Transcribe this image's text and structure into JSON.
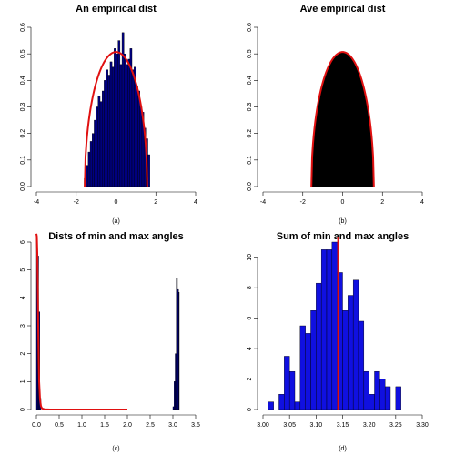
{
  "colors": {
    "bar_fill": "#1010e0",
    "bar_fill_dark": "#000080",
    "bar_stroke": "#000000",
    "curve": "#e01010",
    "black": "#000000"
  },
  "chart_data": [
    {
      "type": "bar",
      "title": "An empirical dist",
      "caption": "(a)",
      "xlabel": "",
      "ylabel": "",
      "xlim": [
        -4,
        4
      ],
      "ylim": [
        0,
        0.6
      ],
      "xticks": [
        -4,
        -2,
        0,
        2,
        4
      ],
      "yticks": [
        0.0,
        0.1,
        0.2,
        0.3,
        0.4,
        0.5,
        0.6
      ],
      "bar_color": "#000080",
      "bin_width": 0.1,
      "bins_start": -1.6,
      "values": [
        0.03,
        0.08,
        0.13,
        0.17,
        0.2,
        0.25,
        0.3,
        0.34,
        0.32,
        0.36,
        0.4,
        0.44,
        0.42,
        0.47,
        0.45,
        0.52,
        0.5,
        0.55,
        0.46,
        0.58,
        0.5,
        0.46,
        0.48,
        0.52,
        0.44,
        0.45,
        0.38,
        0.36,
        0.3,
        0.28,
        0.22,
        0.18,
        0.12
      ],
      "curve": {
        "type": "semicircle",
        "radius": 1.57,
        "peak": 0.507
      }
    },
    {
      "type": "area",
      "title": "Ave empirical dist",
      "caption": "(b)",
      "xlabel": "",
      "ylabel": "",
      "xlim": [
        -4,
        4
      ],
      "ylim": [
        0,
        0.6
      ],
      "xticks": [
        -4,
        -2,
        0,
        2,
        4
      ],
      "yticks": [
        0.0,
        0.1,
        0.2,
        0.3,
        0.4,
        0.5,
        0.6
      ],
      "area_color": "#000000",
      "curve": {
        "type": "semicircle",
        "radius": 1.57,
        "peak": 0.507
      }
    },
    {
      "type": "bar",
      "title": "Dists of min and max angles",
      "caption": "(c)",
      "xlabel": "",
      "ylabel": "",
      "xlim": [
        0,
        3.5
      ],
      "ylim": [
        0,
        6
      ],
      "xticks": [
        0.0,
        0.5,
        1.0,
        1.5,
        2.0,
        2.5,
        3.0,
        3.5
      ],
      "yticks": [
        0,
        1,
        2,
        3,
        4,
        5,
        6
      ],
      "bar_color": "#000080",
      "bars": [
        {
          "x0": 0.0,
          "x1": 0.025,
          "value": 6.2
        },
        {
          "x0": 0.025,
          "x1": 0.05,
          "value": 5.5
        },
        {
          "x0": 0.05,
          "x1": 0.075,
          "value": 3.5
        },
        {
          "x0": 0.075,
          "x1": 0.1,
          "value": 0.4
        },
        {
          "x0": 3.0,
          "x1": 3.025,
          "value": 0.1
        },
        {
          "x0": 3.025,
          "x1": 3.05,
          "value": 1.0
        },
        {
          "x0": 3.05,
          "x1": 3.075,
          "value": 2.0
        },
        {
          "x0": 3.075,
          "x1": 3.1,
          "value": 4.7
        },
        {
          "x0": 3.1,
          "x1": 3.125,
          "value": 4.3
        },
        {
          "x0": 3.125,
          "x1": 3.14,
          "value": 4.2
        }
      ],
      "curve": {
        "type": "exp-decay",
        "x": [
          0,
          0.01,
          0.02,
          0.03,
          0.04,
          0.05,
          0.06,
          0.08,
          0.1,
          0.12,
          0.15,
          0.2,
          0.3,
          2.0
        ],
        "y": [
          6.3,
          6.2,
          5.6,
          4.4,
          3.0,
          1.8,
          1.0,
          0.35,
          0.12,
          0.05,
          0.02,
          0.01,
          0.0,
          0.0
        ]
      }
    },
    {
      "type": "bar",
      "title": "Sum of min and max angles",
      "caption": "(d)",
      "xlabel": "",
      "ylabel": "",
      "xlim": [
        3.0,
        3.3
      ],
      "ylim": [
        0,
        11
      ],
      "xticks": [
        3.0,
        3.05,
        3.1,
        3.15,
        3.2,
        3.25,
        3.3
      ],
      "yticks": [
        0,
        2,
        4,
        6,
        8,
        10
      ],
      "bar_color": "#1010e0",
      "bin_width": 0.01,
      "bins_start": 3.01,
      "values": [
        0.5,
        0,
        1,
        3.5,
        2.5,
        0.5,
        5.5,
        5,
        6.5,
        8.3,
        10.5,
        10.5,
        11,
        9,
        6.5,
        7.5,
        8.5,
        5.8,
        2.5,
        1,
        2.5,
        2,
        1.5,
        0,
        1.5
      ],
      "vline": 3.1416
    }
  ]
}
